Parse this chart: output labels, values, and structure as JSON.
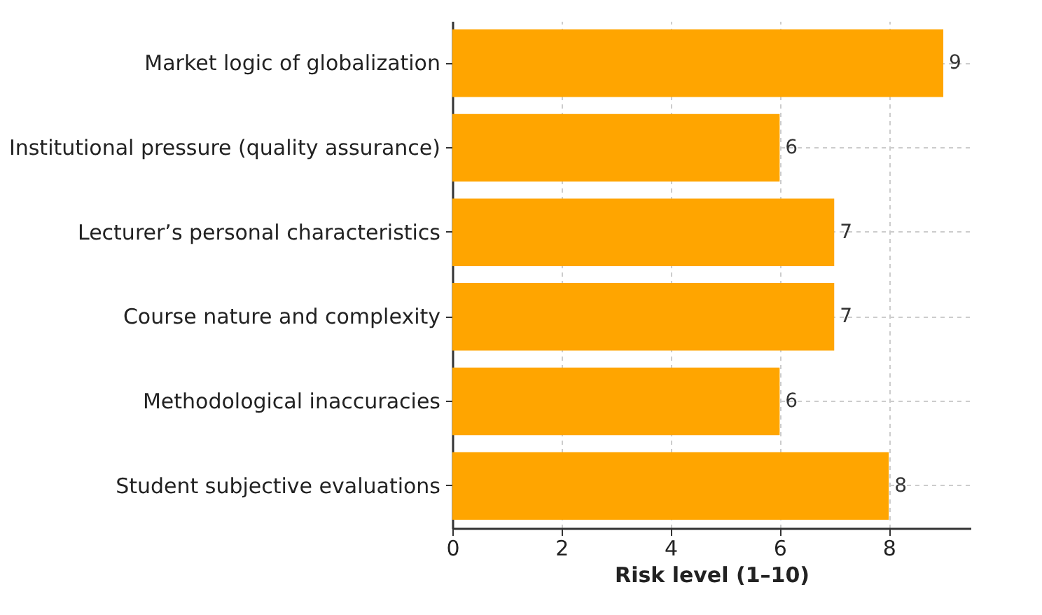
{
  "chart_data": {
    "type": "bar",
    "orientation": "horizontal",
    "xlabel": "Risk level (1–10)",
    "categories": [
      "Market logic of globalization",
      "Institutional pressure (quality assurance)",
      "Lecturer’s personal characteristics",
      "Course nature and complexity",
      "Methodological inaccuracies",
      "Student subjective evaluations"
    ],
    "values": [
      9,
      6,
      7,
      7,
      6,
      8
    ],
    "color": "#ffa500",
    "xlim": [
      0,
      9.5
    ],
    "xticks": [
      0,
      2,
      4,
      6,
      8
    ],
    "grid": true,
    "data_labels": true
  }
}
